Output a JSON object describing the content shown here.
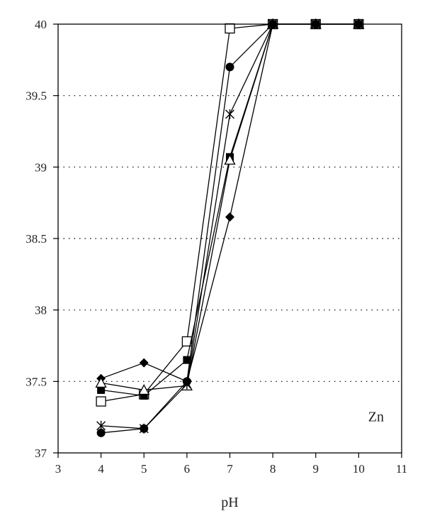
{
  "chart_data": {
    "type": "line",
    "title": "",
    "xlabel": "pH",
    "ylabel": "",
    "xlim": [
      3,
      11
    ],
    "ylim": [
      37,
      40
    ],
    "xticks": [
      "3",
      "4",
      "5",
      "6",
      "7",
      "8",
      "9",
      "10",
      "11"
    ],
    "yticks": [
      "37",
      "37.5",
      "38",
      "38.5",
      "39",
      "39.5",
      "40"
    ],
    "grid": "horizontal dotted",
    "annotation": "Zn",
    "series": [
      {
        "marker": "diamond-filled",
        "x": [
          4,
          5,
          6,
          7,
          8,
          9,
          10
        ],
        "y": [
          37.52,
          37.63,
          37.5,
          38.65,
          40.0,
          40.0,
          40.0
        ]
      },
      {
        "marker": "square-open",
        "x": [
          4,
          5,
          6,
          7,
          8,
          9,
          10
        ],
        "y": [
          37.36,
          37.41,
          37.78,
          39.97,
          40.0,
          40.0,
          40.0
        ]
      },
      {
        "marker": "square-filled",
        "x": [
          4,
          5,
          6,
          7,
          8,
          9,
          10
        ],
        "y": [
          37.44,
          37.4,
          37.65,
          39.07,
          40.0,
          40.0,
          40.0
        ]
      },
      {
        "marker": "triangle-open",
        "x": [
          4,
          5,
          6,
          7,
          8,
          9,
          10
        ],
        "y": [
          37.49,
          37.44,
          37.47,
          39.05,
          40.0,
          40.0,
          40.0
        ]
      },
      {
        "marker": "star-cross",
        "x": [
          4,
          5,
          6,
          7,
          8,
          9,
          10
        ],
        "y": [
          37.19,
          37.17,
          37.48,
          39.37,
          40.0,
          40.0,
          40.0
        ]
      },
      {
        "marker": "circle-filled",
        "x": [
          4,
          5,
          6,
          7,
          8,
          9,
          10
        ],
        "y": [
          37.14,
          37.17,
          37.5,
          39.7,
          40.0,
          40.0,
          40.0
        ]
      }
    ]
  }
}
